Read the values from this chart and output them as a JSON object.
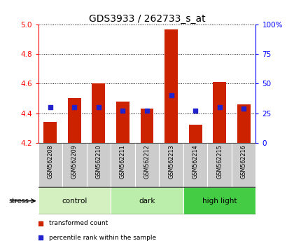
{
  "title": "GDS3933 / 262733_s_at",
  "samples": [
    "GSM562208",
    "GSM562209",
    "GSM562210",
    "GSM562211",
    "GSM562212",
    "GSM562213",
    "GSM562214",
    "GSM562215",
    "GSM562216"
  ],
  "red_values": [
    4.34,
    4.5,
    4.6,
    4.48,
    4.43,
    4.97,
    4.32,
    4.61,
    4.46
  ],
  "blue_values": [
    30,
    30,
    30,
    27,
    27,
    40,
    27,
    30,
    29
  ],
  "ylim_left": [
    4.2,
    5.0
  ],
  "ylim_right": [
    0,
    100
  ],
  "yticks_left": [
    4.2,
    4.4,
    4.6,
    4.8,
    5.0
  ],
  "yticks_right": [
    0,
    25,
    50,
    75,
    100
  ],
  "ytick_labels_right": [
    "0",
    "25",
    "50",
    "75",
    "100%"
  ],
  "groups": [
    {
      "label": "control",
      "indices": [
        0,
        1,
        2
      ],
      "color": "#d4f0c0"
    },
    {
      "label": "dark",
      "indices": [
        3,
        4,
        5
      ],
      "color": "#bbeeaa"
    },
    {
      "label": "high light",
      "indices": [
        6,
        7,
        8
      ],
      "color": "#44cc44"
    }
  ],
  "group_row_label": "stress",
  "bar_color": "#cc2200",
  "blue_color": "#2222cc",
  "dot_size": 22,
  "bar_width": 0.55,
  "background_color": "#ffffff",
  "label_bar_bottom": 4.2,
  "legend_red": "transformed count",
  "legend_blue": "percentile rank within the sample",
  "title_fontsize": 10,
  "tick_fontsize": 7.5,
  "sample_fontsize": 5.8,
  "group_fontsize": 7.5,
  "legend_fontsize": 6.5
}
